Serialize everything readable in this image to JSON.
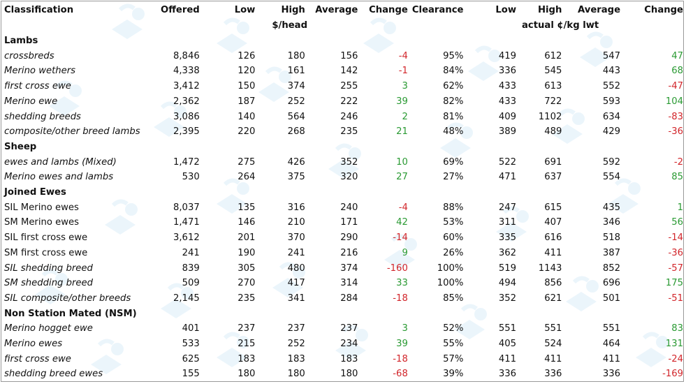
{
  "headers": [
    "Classification",
    "Offered",
    "Low",
    "High",
    "Average",
    "Change",
    "Clearance",
    "Low",
    "High",
    "Average",
    "Change"
  ],
  "units": {
    "per_head": "$/head",
    "per_kg": "actual ¢/kg lwt"
  },
  "sections": [
    {
      "title": "Lambs",
      "rows": [
        {
          "name": "crossbreds",
          "italic": true,
          "offered": "8,846",
          "low": "126",
          "high": "180",
          "average": "156",
          "change": "-4",
          "clearance": "95%",
          "kg_low": "419",
          "kg_high": "612",
          "kg_average": "547",
          "kg_change": "47"
        },
        {
          "name": "Merino wethers",
          "italic": true,
          "offered": "4,338",
          "low": "120",
          "high": "161",
          "average": "142",
          "change": "-1",
          "clearance": "84%",
          "kg_low": "336",
          "kg_high": "545",
          "kg_average": "443",
          "kg_change": "68"
        },
        {
          "name": "first cross ewe",
          "italic": true,
          "offered": "3,412",
          "low": "150",
          "high": "374",
          "average": "255",
          "change": "3",
          "clearance": "62%",
          "kg_low": "433",
          "kg_high": "613",
          "kg_average": "552",
          "kg_change": "-47"
        },
        {
          "name": "Merino ewe",
          "italic": true,
          "offered": "2,362",
          "low": "187",
          "high": "252",
          "average": "222",
          "change": "39",
          "clearance": "82%",
          "kg_low": "433",
          "kg_high": "722",
          "kg_average": "593",
          "kg_change": "104"
        },
        {
          "name": "shedding breeds",
          "italic": true,
          "offered": "3,086",
          "low": "140",
          "high": "564",
          "average": "246",
          "change": "2",
          "clearance": "81%",
          "kg_low": "409",
          "kg_high": "1102",
          "kg_average": "634",
          "kg_change": "-83"
        },
        {
          "name": "composite/other breed lambs",
          "italic": true,
          "offered": "2,395",
          "low": "220",
          "high": "268",
          "average": "235",
          "change": "21",
          "clearance": "48%",
          "kg_low": "389",
          "kg_high": "489",
          "kg_average": "429",
          "kg_change": "-36"
        }
      ]
    },
    {
      "title": "Sheep",
      "rows": [
        {
          "name": "ewes and lambs (Mixed)",
          "italic": true,
          "offered": "1,472",
          "low": "275",
          "high": "426",
          "average": "352",
          "change": "10",
          "clearance": "69%",
          "kg_low": "522",
          "kg_high": "691",
          "kg_average": "592",
          "kg_change": "-2"
        },
        {
          "name": "Merino ewes and lambs",
          "italic": true,
          "offered": "530",
          "low": "264",
          "high": "375",
          "average": "320",
          "change": "27",
          "clearance": "27%",
          "kg_low": "471",
          "kg_high": "637",
          "kg_average": "554",
          "kg_change": "85"
        }
      ]
    },
    {
      "title": "Joined Ewes",
      "rows": [
        {
          "name": "SIL Merino ewes",
          "italic": false,
          "offered": "8,037",
          "low": "135",
          "high": "316",
          "average": "240",
          "change": "-4",
          "clearance": "88%",
          "kg_low": "247",
          "kg_high": "615",
          "kg_average": "435",
          "kg_change": "1"
        },
        {
          "name": "SM Merino ewes",
          "italic": false,
          "offered": "1,471",
          "low": "146",
          "high": "210",
          "average": "171",
          "change": "42",
          "clearance": "53%",
          "kg_low": "311",
          "kg_high": "407",
          "kg_average": "346",
          "kg_change": "56"
        },
        {
          "name": "SIL first cross ewe",
          "italic": false,
          "offered": "3,612",
          "low": "201",
          "high": "370",
          "average": "290",
          "change": "-14",
          "clearance": "60%",
          "kg_low": "335",
          "kg_high": "616",
          "kg_average": "518",
          "kg_change": "-14"
        },
        {
          "name": "SM first cross ewe",
          "italic": false,
          "offered": "241",
          "low": "190",
          "high": "241",
          "average": "216",
          "change": "9",
          "clearance": "26%",
          "kg_low": "362",
          "kg_high": "411",
          "kg_average": "387",
          "kg_change": "-36"
        },
        {
          "name": "SIL shedding breed",
          "italic": true,
          "offered": "839",
          "low": "305",
          "high": "480",
          "average": "374",
          "change": "-160",
          "clearance": "100%",
          "kg_low": "519",
          "kg_high": "1143",
          "kg_average": "852",
          "kg_change": "-57"
        },
        {
          "name": "SM shedding breed",
          "italic": true,
          "offered": "509",
          "low": "270",
          "high": "417",
          "average": "314",
          "change": "33",
          "clearance": "100%",
          "kg_low": "494",
          "kg_high": "856",
          "kg_average": "696",
          "kg_change": "175"
        },
        {
          "name": "SIL composite/other breeds",
          "italic": true,
          "offered": "2,145",
          "low": "235",
          "high": "341",
          "average": "284",
          "change": "-18",
          "clearance": "85%",
          "kg_low": "352",
          "kg_high": "621",
          "kg_average": "501",
          "kg_change": "-51"
        }
      ]
    },
    {
      "title": "Non Station Mated (NSM)",
      "rows": [
        {
          "name": "Merino hogget ewe",
          "italic": true,
          "offered": "401",
          "low": "237",
          "high": "237",
          "average": "237",
          "change": "3",
          "clearance": "52%",
          "kg_low": "551",
          "kg_high": "551",
          "kg_average": "551",
          "kg_change": "83"
        },
        {
          "name": "Merino ewes",
          "italic": true,
          "offered": "533",
          "low": "215",
          "high": "252",
          "average": "234",
          "change": "39",
          "clearance": "55%",
          "kg_low": "405",
          "kg_high": "524",
          "kg_average": "464",
          "kg_change": "131"
        },
        {
          "name": "first cross ewe",
          "italic": true,
          "offered": "625",
          "low": "183",
          "high": "183",
          "average": "183",
          "change": "-18",
          "clearance": "57%",
          "kg_low": "411",
          "kg_high": "411",
          "kg_average": "411",
          "kg_change": "-24"
        },
        {
          "name": "shedding breed ewes",
          "italic": true,
          "offered": "155",
          "low": "180",
          "high": "180",
          "average": "180",
          "change": "-68",
          "clearance": "39%",
          "kg_low": "336",
          "kg_high": "336",
          "kg_average": "336",
          "kg_change": "-169"
        }
      ]
    }
  ],
  "colors": {
    "positive": "#2a9a33",
    "negative": "#d2262b",
    "watermark": "#dceef9"
  }
}
